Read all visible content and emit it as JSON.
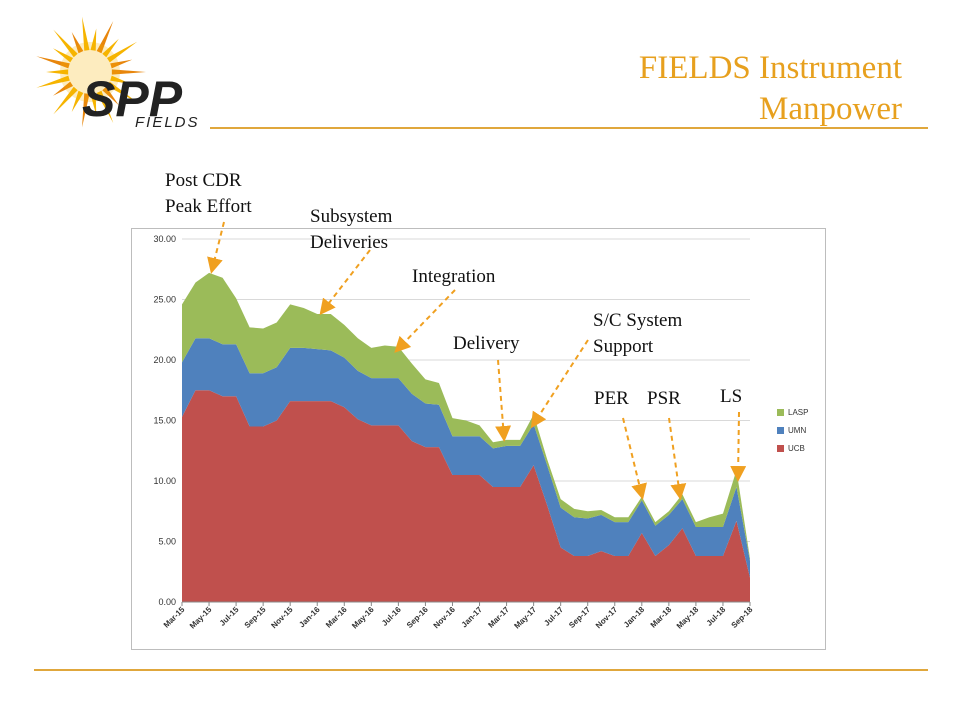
{
  "header": {
    "title_line1": "FIELDS Instrument",
    "title_line2": "Manpower",
    "logo_text_main": "SPP",
    "logo_text_sub": "FIELDS"
  },
  "colors": {
    "accent": "#e7a01e",
    "ucb": "#c0504d",
    "umn": "#4f81bd",
    "lasp": "#9bbb59",
    "arrow": "#f0a020"
  },
  "annotations": {
    "post_cdr_line1": "Post CDR",
    "post_cdr_line2": "Peak Effort",
    "subsystem_line1": "Subsystem",
    "subsystem_line2": "Deliveries",
    "integration": "Integration",
    "delivery": "Delivery",
    "sc_line1": "S/C System",
    "sc_line2": "Support",
    "per": "PER",
    "psr": "PSR",
    "ls": "LS"
  },
  "chart_data": {
    "type": "area",
    "stacked": true,
    "ylim": [
      0,
      30
    ],
    "yticks": [
      "0.00",
      "5.00",
      "10.00",
      "15.00",
      "20.00",
      "25.00",
      "30.00"
    ],
    "x": [
      "Mar-15",
      "Apr-15",
      "May-15",
      "Jun-15",
      "Jul-15",
      "Aug-15",
      "Sep-15",
      "Oct-15",
      "Nov-15",
      "Dec-15",
      "Jan-16",
      "Feb-16",
      "Mar-16",
      "Apr-16",
      "May-16",
      "Jun-16",
      "Jul-16",
      "Aug-16",
      "Sep-16",
      "Oct-16",
      "Nov-16",
      "Dec-16",
      "Jan-17",
      "Feb-17",
      "Mar-17",
      "Apr-17",
      "May-17",
      "Jun-17",
      "Jul-17",
      "Aug-17",
      "Sep-17",
      "Oct-17",
      "Nov-17",
      "Dec-17",
      "Jan-18",
      "Feb-18",
      "Mar-18",
      "Apr-18",
      "May-18",
      "Jun-18",
      "Jul-18",
      "Aug-18",
      "Sep-18"
    ],
    "xtick_labels": [
      "Mar-15",
      "May-15",
      "Jul-15",
      "Sep-15",
      "Nov-15",
      "Jan-16",
      "Mar-16",
      "May-16",
      "Jul-16",
      "Sep-16",
      "Nov-16",
      "Jan-17",
      "Mar-17",
      "May-17",
      "Jul-17",
      "Sep-17",
      "Nov-17",
      "Jan-18",
      "Mar-18",
      "May-18",
      "Jul-18",
      "Sep-18"
    ],
    "legend_position": "right",
    "grid": true,
    "series": [
      {
        "name": "UCB",
        "values": [
          15.3,
          17.5,
          17.5,
          17.0,
          17.0,
          14.5,
          14.5,
          15.0,
          16.6,
          16.6,
          16.6,
          16.6,
          16.1,
          15.1,
          14.6,
          14.6,
          14.6,
          13.3,
          12.8,
          12.8,
          10.5,
          10.5,
          10.5,
          9.5,
          9.5,
          9.5,
          11.3,
          8.0,
          4.5,
          3.8,
          3.8,
          4.2,
          3.8,
          3.8,
          5.7,
          3.8,
          4.7,
          6.1,
          3.8,
          3.8,
          3.8,
          6.7,
          2.0
        ]
      },
      {
        "name": "UMN",
        "values": [
          4.5,
          4.3,
          4.3,
          4.3,
          4.3,
          4.4,
          4.4,
          4.4,
          4.4,
          4.4,
          4.3,
          4.2,
          4.1,
          4.0,
          3.9,
          3.9,
          3.9,
          3.9,
          3.6,
          3.5,
          3.2,
          3.2,
          3.2,
          3.2,
          3.4,
          3.4,
          3.4,
          3.3,
          3.3,
          3.2,
          3.1,
          3.0,
          2.8,
          2.8,
          2.7,
          2.5,
          2.5,
          2.4,
          2.4,
          2.4,
          2.4,
          2.8,
          1.4
        ]
      },
      {
        "name": "LASP",
        "values": [
          4.8,
          4.6,
          5.4,
          5.5,
          3.8,
          3.8,
          3.7,
          3.7,
          3.6,
          3.3,
          2.9,
          3.0,
          2.7,
          2.7,
          2.5,
          2.7,
          2.6,
          2.5,
          2.0,
          1.8,
          1.5,
          1.3,
          0.9,
          0.5,
          0.5,
          0.5,
          0.8,
          0.5,
          0.7,
          0.7,
          0.6,
          0.4,
          0.4,
          0.4,
          0.3,
          0.3,
          0.3,
          0.4,
          0.4,
          0.8,
          1.1,
          1.4,
          0.2
        ]
      }
    ]
  }
}
